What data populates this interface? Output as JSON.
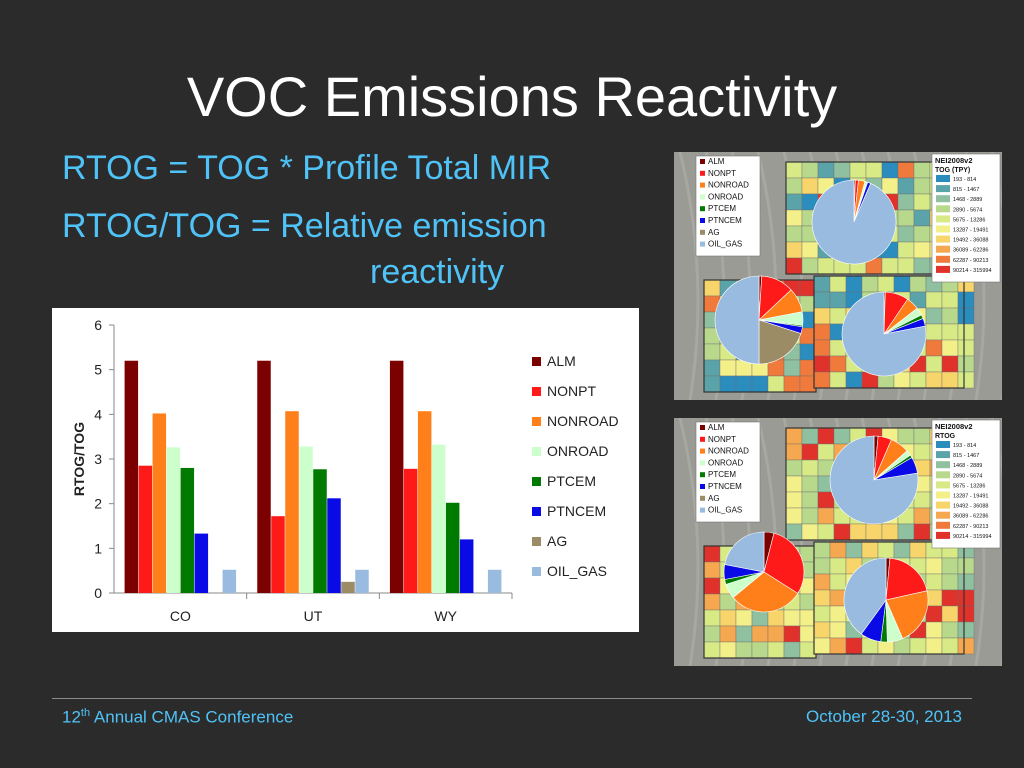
{
  "slide": {
    "title": "VOC Emissions Reactivity",
    "bullet1": "RTOG = TOG * Profile Total MIR",
    "bullet2_line1": "RTOG/TOG = Relative emission",
    "bullet2_line2": "reactivity"
  },
  "footer": {
    "conf_ordinal_num": "12",
    "conf_ordinal_sup": "th",
    "conf_name": " Annual CMAS Conference",
    "date": "October 28-30, 2013"
  },
  "colors": {
    "ALM": "#7b0000",
    "NONPT": "#ff1a1a",
    "NONROAD": "#ff7f1a",
    "ONROAD": "#ccffcc",
    "PTCEM": "#007a00",
    "PTNCEM": "#0a0ae6",
    "AG": "#9c8c66",
    "OIL_GAS": "#99bbe0"
  },
  "chart_data": {
    "type": "bar",
    "categories": [
      "CO",
      "UT",
      "WY"
    ],
    "ylabel": "RTOG/TOG",
    "ylim": [
      0,
      6
    ],
    "yticks": [
      0,
      1,
      2,
      3,
      4,
      5,
      6
    ],
    "grid": false,
    "legend_position": "right",
    "series": [
      {
        "name": "ALM",
        "values": [
          5.2,
          5.2,
          5.2
        ]
      },
      {
        "name": "NONPT",
        "values": [
          2.85,
          1.72,
          2.78
        ]
      },
      {
        "name": "NONROAD",
        "values": [
          4.02,
          4.07,
          4.07
        ]
      },
      {
        "name": "ONROAD",
        "values": [
          3.26,
          3.28,
          3.32
        ]
      },
      {
        "name": "PTCEM",
        "values": [
          2.8,
          2.77,
          2.02
        ]
      },
      {
        "name": "PTNCEM",
        "values": [
          1.33,
          2.12,
          1.2
        ]
      },
      {
        "name": "AG",
        "values": [
          0,
          0.25,
          0
        ]
      },
      {
        "name": "OIL_GAS",
        "values": [
          0.52,
          0.52,
          0.52
        ]
      }
    ]
  },
  "map1": {
    "legend_title": "NEI2008v2",
    "legend_subtitle": "TOG (TPY)",
    "pie_legend": [
      "ALM",
      "NONPT",
      "NONROAD",
      "ONROAD",
      "PTCEM",
      "PTNCEM",
      "AG",
      "OIL_GAS"
    ],
    "ranges": [
      {
        "label": "193 - 814",
        "color": "#2b8cbe"
      },
      {
        "label": "815 - 1467",
        "color": "#5aa3a8"
      },
      {
        "label": "1468 - 2889",
        "color": "#8fc0a0"
      },
      {
        "label": "2890 - 5674",
        "color": "#b8d98c"
      },
      {
        "label": "5675 - 13286",
        "color": "#d8ea86"
      },
      {
        "label": "13287 - 19491",
        "color": "#f3f08a"
      },
      {
        "label": "19492 - 36088",
        "color": "#f7d56a"
      },
      {
        "label": "36089 - 62286",
        "color": "#f5a84f"
      },
      {
        "label": "62287 - 90213",
        "color": "#ef7a3c"
      },
      {
        "label": "90214 - 315994",
        "color": "#e0312a"
      }
    ]
  },
  "map2": {
    "legend_title": "NEI2008v2",
    "legend_subtitle": "RTOG",
    "pie_legend": [
      "ALM",
      "NONPT",
      "NONROAD",
      "ONROAD",
      "PTCEM",
      "PTNCEM",
      "AG",
      "OIL_GAS"
    ],
    "ranges": [
      {
        "label": "193 - 814",
        "color": "#2b8cbe"
      },
      {
        "label": "815 - 1467",
        "color": "#5aa3a8"
      },
      {
        "label": "1468 - 2889",
        "color": "#8fc0a0"
      },
      {
        "label": "2890 - 5674",
        "color": "#b8d98c"
      },
      {
        "label": "5675 - 13286",
        "color": "#d8ea86"
      },
      {
        "label": "13287 - 19491",
        "color": "#f3f08a"
      },
      {
        "label": "19492 - 36088",
        "color": "#f7d56a"
      },
      {
        "label": "36089 - 62286",
        "color": "#f5a84f"
      },
      {
        "label": "62287 - 90213",
        "color": "#ef7a3c"
      },
      {
        "label": "90214 - 315994",
        "color": "#e0312a"
      }
    ]
  }
}
